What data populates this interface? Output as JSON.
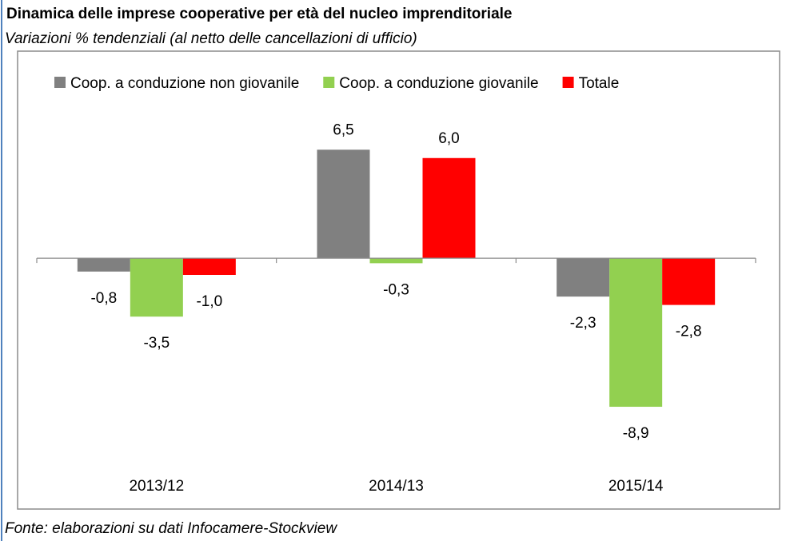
{
  "chart_data": {
    "type": "bar",
    "title": "Dinamica delle imprese cooperative per età del nucleo imprenditoriale",
    "subtitle": "Variazioni % tendenziali (al netto delle cancellazioni di ufficio)",
    "source": "Fonte: elaborazioni su dati Infocamere-Stockview",
    "categories": [
      "2013/12",
      "2014/13",
      "2015/14"
    ],
    "ylim": [
      -10,
      8
    ],
    "legend": "top",
    "series": [
      {
        "name": "Coop. a conduzione non giovanile",
        "color": "#808080",
        "values": [
          -0.8,
          6.5,
          -2.3
        ],
        "value_labels": [
          "-0,8",
          "6,5",
          "-2,3"
        ]
      },
      {
        "name": "Coop. a conduzione giovanile",
        "color": "#92d050",
        "values": [
          -3.5,
          -0.3,
          -8.9
        ],
        "value_labels": [
          "-3,5",
          "-0,3",
          "-8,9"
        ]
      },
      {
        "name": "Totale",
        "color": "#ff0000",
        "values": [
          -1.0,
          6.0,
          -2.8
        ],
        "value_labels": [
          "-1,0",
          "6,0",
          "-2,8"
        ]
      }
    ]
  }
}
